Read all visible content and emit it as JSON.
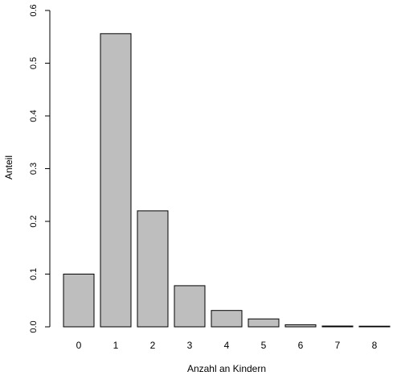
{
  "chart_data": {
    "type": "bar",
    "categories": [
      "0",
      "1",
      "2",
      "3",
      "4",
      "5",
      "6",
      "7",
      "8"
    ],
    "values": [
      0.1,
      0.556,
      0.22,
      0.078,
      0.031,
      0.015,
      0.004,
      0.0015,
      0.0005
    ],
    "title": "",
    "xlabel": "Anzahl an Kindern",
    "ylabel": "Anteil",
    "ylim": [
      0,
      0.6
    ],
    "yticks": [
      "0.0",
      "0.1",
      "0.2",
      "0.3",
      "0.4",
      "0.5",
      "0.6"
    ],
    "grid": false,
    "bar_color": "#bebebe",
    "bar_edge_color": "#000000"
  }
}
